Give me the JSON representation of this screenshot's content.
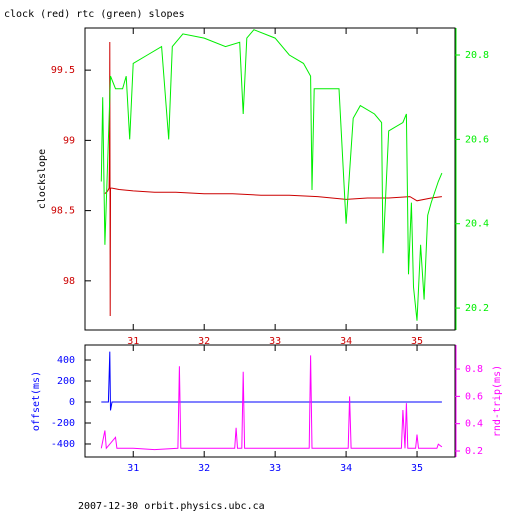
{
  "footer": "2007-12-30 orbit.physics.ubc.ca",
  "chart_data": [
    {
      "type": "line",
      "title": "clock (red) rtc (green) slopes",
      "ylabel": "clockslope",
      "ylabel_color": "#000000",
      "xlim": [
        30.32,
        35.535
      ],
      "xticks": [
        31,
        32,
        33,
        34,
        35
      ],
      "ylim": [
        97.65,
        99.8
      ],
      "yticks": [
        99.5,
        99,
        98.5,
        98
      ],
      "y2lim": [
        20.148,
        20.864
      ],
      "y2ticks": [
        20.8,
        20.6,
        20.4,
        20.2
      ],
      "series": [
        {
          "color": "#cc0000",
          "axis": "y",
          "x": [
            30.6,
            30.64,
            30.66,
            30.665,
            30.67,
            30.675,
            30.68,
            30.7,
            30.8,
            31.0,
            31.3,
            31.6,
            32.0,
            32.4,
            32.8,
            33.2,
            33.6,
            34.0,
            34.3,
            34.6,
            34.9,
            35.0,
            35.2,
            35.35
          ],
          "values": [
            98.62,
            98.64,
            98.66,
            98.88,
            99.7,
            97.75,
            98.66,
            98.66,
            98.65,
            98.64,
            98.63,
            98.63,
            98.62,
            98.62,
            98.61,
            98.61,
            98.6,
            98.58,
            98.59,
            98.59,
            98.6,
            98.57,
            98.59,
            98.6
          ]
        },
        {
          "color": "#00ee00",
          "axis": "y2",
          "x": [
            30.55,
            30.57,
            30.6,
            30.68,
            30.75,
            30.85,
            30.9,
            30.95,
            31.0,
            31.2,
            31.4,
            31.5,
            31.55,
            31.7,
            32.0,
            32.3,
            32.5,
            32.55,
            32.6,
            32.7,
            33.0,
            33.2,
            33.4,
            33.5,
            33.52,
            33.55,
            33.9,
            34.0,
            34.1,
            34.2,
            34.4,
            34.5,
            34.52,
            34.6,
            34.8,
            34.85,
            34.88,
            34.92,
            34.95,
            35.0,
            35.05,
            35.1,
            35.15,
            35.2,
            35.3,
            35.35
          ],
          "values": [
            20.5,
            20.7,
            20.35,
            20.75,
            20.72,
            20.72,
            20.75,
            20.6,
            20.78,
            20.8,
            20.82,
            20.6,
            20.82,
            20.85,
            20.84,
            20.82,
            20.83,
            20.66,
            20.84,
            20.86,
            20.84,
            20.8,
            20.78,
            20.75,
            20.48,
            20.72,
            20.72,
            20.4,
            20.65,
            20.68,
            20.66,
            20.64,
            20.33,
            20.62,
            20.64,
            20.66,
            20.28,
            20.45,
            20.25,
            20.17,
            20.35,
            20.22,
            20.42,
            20.45,
            20.5,
            20.52
          ]
        }
      ]
    },
    {
      "type": "line",
      "ylabel": "offset(ms)",
      "ylabel_color": "#0000ff",
      "y2label": "rnd-trip(ms)",
      "y2label_color": "#ff00ff",
      "xlim": [
        30.32,
        35.535
      ],
      "xticks": [
        31,
        32,
        33,
        34,
        35
      ],
      "ylim": [
        -524,
        543
      ],
      "yticks": [
        400,
        200,
        0,
        -200,
        -400
      ],
      "y2lim": [
        0.156,
        0.976
      ],
      "y2ticks": [
        0.8,
        0.6,
        0.4,
        0.2
      ],
      "series": [
        {
          "color": "#0000ff",
          "axis": "y",
          "x": [
            30.55,
            30.65,
            30.67,
            30.68,
            30.7,
            35.35
          ],
          "values": [
            0,
            0,
            480,
            -80,
            0,
            0
          ]
        },
        {
          "color": "#ff00ff",
          "axis": "y2",
          "x": [
            30.55,
            30.6,
            30.62,
            30.75,
            30.77,
            31.0,
            31.3,
            31.63,
            31.65,
            31.67,
            32.0,
            32.43,
            32.45,
            32.47,
            32.53,
            32.55,
            32.57,
            33.0,
            33.48,
            33.5,
            33.52,
            33.8,
            34.03,
            34.05,
            34.07,
            34.5,
            34.78,
            34.8,
            34.83,
            34.85,
            34.87,
            34.98,
            35.0,
            35.02,
            35.28,
            35.3,
            35.35
          ],
          "values": [
            0.22,
            0.35,
            0.22,
            0.3,
            0.22,
            0.22,
            0.21,
            0.22,
            0.82,
            0.22,
            0.22,
            0.22,
            0.37,
            0.22,
            0.22,
            0.78,
            0.22,
            0.22,
            0.22,
            0.9,
            0.22,
            0.22,
            0.22,
            0.6,
            0.22,
            0.22,
            0.22,
            0.5,
            0.22,
            0.55,
            0.22,
            0.22,
            0.32,
            0.22,
            0.22,
            0.25,
            0.23
          ]
        }
      ]
    }
  ]
}
